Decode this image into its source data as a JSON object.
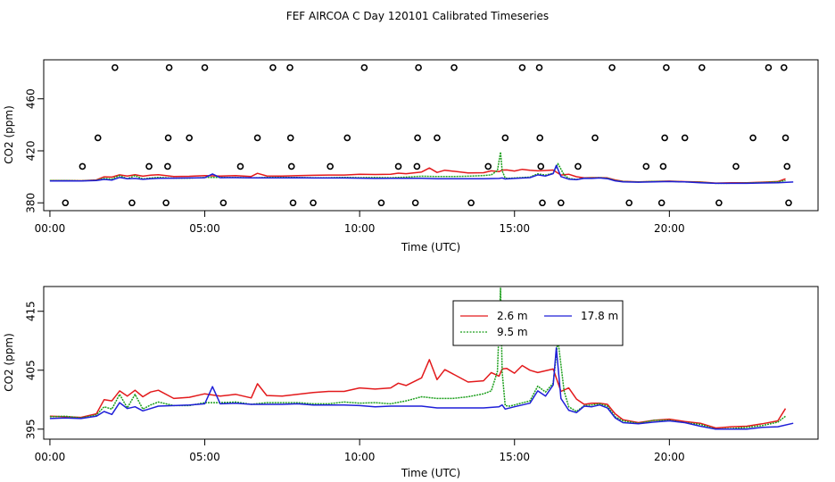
{
  "chart_data": {
    "title": "FEF AIRCOA C  Day 120101  Calibrated Timeseries",
    "panels": [
      {
        "type": "scatter+line",
        "xlabel": "Time (UTC)",
        "ylabel": "CO2 (ppm)",
        "xlim": [
          -0.2,
          24.8
        ],
        "ylim": [
          374,
          490
        ],
        "xticks": [
          0,
          5,
          10,
          15,
          20
        ],
        "xtick_labels": [
          "00:00",
          "05:00",
          "10:00",
          "15:00",
          "20:00"
        ],
        "yticks": [
          380,
          420,
          460
        ],
        "ytick_labels": [
          "380",
          "420",
          "460"
        ],
        "calibration_points": [
          {
            "x": 0.5,
            "y": 380
          },
          {
            "x": 1.05,
            "y": 408
          },
          {
            "x": 1.55,
            "y": 430
          },
          {
            "x": 2.1,
            "y": 484
          },
          {
            "x": 2.65,
            "y": 380
          },
          {
            "x": 3.2,
            "y": 408
          },
          {
            "x": 3.75,
            "y": 380
          },
          {
            "x": 3.8,
            "y": 408
          },
          {
            "x": 3.82,
            "y": 430
          },
          {
            "x": 3.85,
            "y": 484
          },
          {
            "x": 4.5,
            "y": 430
          },
          {
            "x": 5.0,
            "y": 484
          },
          {
            "x": 5.6,
            "y": 380
          },
          {
            "x": 6.15,
            "y": 408
          },
          {
            "x": 6.7,
            "y": 430
          },
          {
            "x": 7.2,
            "y": 484
          },
          {
            "x": 7.75,
            "y": 484
          },
          {
            "x": 7.77,
            "y": 430
          },
          {
            "x": 7.8,
            "y": 408
          },
          {
            "x": 7.85,
            "y": 380
          },
          {
            "x": 8.5,
            "y": 380
          },
          {
            "x": 9.05,
            "y": 408
          },
          {
            "x": 9.6,
            "y": 430
          },
          {
            "x": 10.15,
            "y": 484
          },
          {
            "x": 10.7,
            "y": 380
          },
          {
            "x": 11.25,
            "y": 408
          },
          {
            "x": 11.8,
            "y": 380
          },
          {
            "x": 11.85,
            "y": 408
          },
          {
            "x": 11.87,
            "y": 430
          },
          {
            "x": 11.9,
            "y": 484
          },
          {
            "x": 12.5,
            "y": 430
          },
          {
            "x": 13.05,
            "y": 484
          },
          {
            "x": 13.6,
            "y": 380
          },
          {
            "x": 14.15,
            "y": 408
          },
          {
            "x": 14.7,
            "y": 430
          },
          {
            "x": 15.25,
            "y": 484
          },
          {
            "x": 15.8,
            "y": 484
          },
          {
            "x": 15.82,
            "y": 430
          },
          {
            "x": 15.85,
            "y": 408
          },
          {
            "x": 15.9,
            "y": 380
          },
          {
            "x": 16.5,
            "y": 380
          },
          {
            "x": 17.05,
            "y": 408
          },
          {
            "x": 17.6,
            "y": 430
          },
          {
            "x": 18.15,
            "y": 484
          },
          {
            "x": 18.7,
            "y": 380
          },
          {
            "x": 19.25,
            "y": 408
          },
          {
            "x": 19.75,
            "y": 380
          },
          {
            "x": 19.8,
            "y": 408
          },
          {
            "x": 19.85,
            "y": 430
          },
          {
            "x": 19.9,
            "y": 484
          },
          {
            "x": 20.5,
            "y": 430
          },
          {
            "x": 21.05,
            "y": 484
          },
          {
            "x": 21.6,
            "y": 380
          },
          {
            "x": 22.15,
            "y": 408
          },
          {
            "x": 22.7,
            "y": 430
          },
          {
            "x": 23.2,
            "y": 484
          },
          {
            "x": 23.7,
            "y": 484
          },
          {
            "x": 23.75,
            "y": 430
          },
          {
            "x": 23.8,
            "y": 408
          },
          {
            "x": 23.85,
            "y": 380
          }
        ]
      },
      {
        "type": "line",
        "xlabel": "Time (UTC)",
        "ylabel": "CO2 (ppm)",
        "xlim": [
          -0.2,
          24.8
        ],
        "ylim": [
          393.3,
          419.2
        ],
        "xticks": [
          0,
          5,
          10,
          15,
          20
        ],
        "xtick_labels": [
          "00:00",
          "05:00",
          "10:00",
          "15:00",
          "20:00"
        ],
        "yticks": [
          395,
          405,
          415
        ],
        "ytick_labels": [
          "395",
          "405",
          "415"
        ],
        "legend": {
          "position": "top-center",
          "entries": [
            "2.6 m",
            "9.5 m",
            "17.8 m"
          ]
        }
      }
    ],
    "series": [
      {
        "name": "2.6 m",
        "color": "#e31a1c",
        "x": [
          0,
          0.5,
          1,
          1.5,
          1.75,
          2,
          2.25,
          2.5,
          2.75,
          3,
          3.25,
          3.5,
          4,
          4.5,
          5,
          5.5,
          6,
          6.5,
          6.7,
          7,
          7.5,
          8,
          8.5,
          9,
          9.5,
          10,
          10.5,
          11,
          11.25,
          11.5,
          12,
          12.25,
          12.5,
          12.75,
          13,
          13.5,
          14,
          14.25,
          14.5,
          14.6,
          14.75,
          15,
          15.25,
          15.5,
          15.75,
          16,
          16.25,
          16.5,
          16.75,
          17,
          17.25,
          17.5,
          17.75,
          18,
          18.25,
          18.5,
          19,
          19.5,
          20,
          20.5,
          21,
          21.5,
          22,
          22.5,
          23,
          23.5,
          23.75
        ],
        "y": [
          397.2,
          397.1,
          397.0,
          397.6,
          400.0,
          399.8,
          401.5,
          400.6,
          401.6,
          400.5,
          401.3,
          401.6,
          400.2,
          400.4,
          401.0,
          400.6,
          400.9,
          400.3,
          402.7,
          400.7,
          400.6,
          400.9,
          401.2,
          401.4,
          401.4,
          402.0,
          401.8,
          402.0,
          402.8,
          402.4,
          403.7,
          406.8,
          403.4,
          405.1,
          404.4,
          403.0,
          403.2,
          404.6,
          404.0,
          405.2,
          405.3,
          404.5,
          405.8,
          405.0,
          404.6,
          404.9,
          405.2,
          401.4,
          402.0,
          400.1,
          399.2,
          399.4,
          399.4,
          399.2,
          397.6,
          396.6,
          396.1,
          396.5,
          396.7,
          396.3,
          396.0,
          395.2,
          395.4,
          395.5,
          395.9,
          396.4,
          398.5
        ]
      },
      {
        "name": "9.5 m",
        "color": "#1a9e1a",
        "x": [
          0,
          0.5,
          1,
          1.5,
          1.75,
          2,
          2.25,
          2.5,
          2.75,
          3,
          3.25,
          3.5,
          4,
          4.5,
          5,
          5.5,
          6,
          6.5,
          7,
          7.5,
          8,
          8.5,
          9,
          9.5,
          10,
          10.5,
          11,
          11.5,
          12,
          12.5,
          13,
          13.5,
          14,
          14.25,
          14.45,
          14.55,
          14.6,
          14.7,
          14.85,
          15,
          15.5,
          15.75,
          16,
          16.25,
          16.4,
          16.6,
          16.75,
          17,
          17.25,
          17.5,
          17.75,
          18,
          18.25,
          18.5,
          19,
          19.5,
          20,
          20.5,
          21,
          21.5,
          22,
          22.5,
          23,
          23.5,
          23.75
        ],
        "y": [
          397.1,
          397.2,
          396.9,
          397.4,
          398.8,
          398.4,
          400.9,
          398.6,
          400.9,
          398.4,
          399.1,
          399.6,
          399.0,
          399.0,
          399.5,
          399.5,
          399.6,
          399.2,
          399.5,
          399.5,
          399.5,
          399.3,
          399.3,
          399.6,
          399.4,
          399.5,
          399.3,
          399.8,
          400.5,
          400.2,
          400.2,
          400.5,
          401.0,
          401.5,
          404.8,
          419.0,
          404.7,
          399.0,
          398.9,
          399.1,
          399.8,
          402.3,
          401.3,
          402.8,
          410.2,
          401.5,
          398.8,
          398.0,
          399.0,
          399.1,
          399.3,
          398.9,
          397.1,
          396.4,
          396.0,
          396.5,
          396.5,
          396.1,
          395.8,
          395.0,
          395.1,
          395.3,
          395.6,
          396.2,
          397.2
        ]
      },
      {
        "name": "17.8 m",
        "color": "#1f1fd8",
        "x": [
          0,
          0.5,
          1,
          1.5,
          1.75,
          2,
          2.25,
          2.5,
          2.75,
          3,
          3.25,
          3.5,
          4,
          4.5,
          5,
          5.25,
          5.5,
          6,
          6.5,
          7,
          7.5,
          8,
          8.5,
          9,
          9.5,
          10,
          10.5,
          11,
          11.5,
          12,
          12.5,
          13,
          13.5,
          14,
          14.5,
          14.6,
          14.7,
          15,
          15.5,
          15.75,
          16,
          16.25,
          16.35,
          16.5,
          16.75,
          17,
          17.25,
          17.5,
          17.75,
          18,
          18.25,
          18.5,
          19,
          19.5,
          20,
          20.5,
          21,
          21.5,
          22,
          22.5,
          23,
          23.5,
          24
        ],
        "y": [
          396.8,
          396.9,
          396.8,
          397.2,
          398.0,
          397.5,
          399.5,
          398.5,
          398.8,
          398.1,
          398.5,
          398.9,
          399.0,
          399.1,
          399.3,
          402.2,
          399.3,
          399.4,
          399.2,
          399.2,
          399.2,
          399.3,
          399.1,
          399.1,
          399.1,
          399.0,
          398.8,
          398.9,
          398.9,
          398.9,
          398.6,
          398.6,
          398.6,
          398.6,
          398.8,
          399.1,
          398.4,
          398.8,
          399.4,
          401.5,
          400.6,
          402.5,
          408.8,
          400.2,
          398.2,
          397.8,
          398.9,
          398.8,
          399.1,
          398.6,
          396.9,
          396.1,
          395.9,
          396.2,
          396.4,
          396.1,
          395.5,
          395.0,
          395.0,
          395.0,
          395.3,
          395.4,
          396.0
        ]
      }
    ]
  }
}
